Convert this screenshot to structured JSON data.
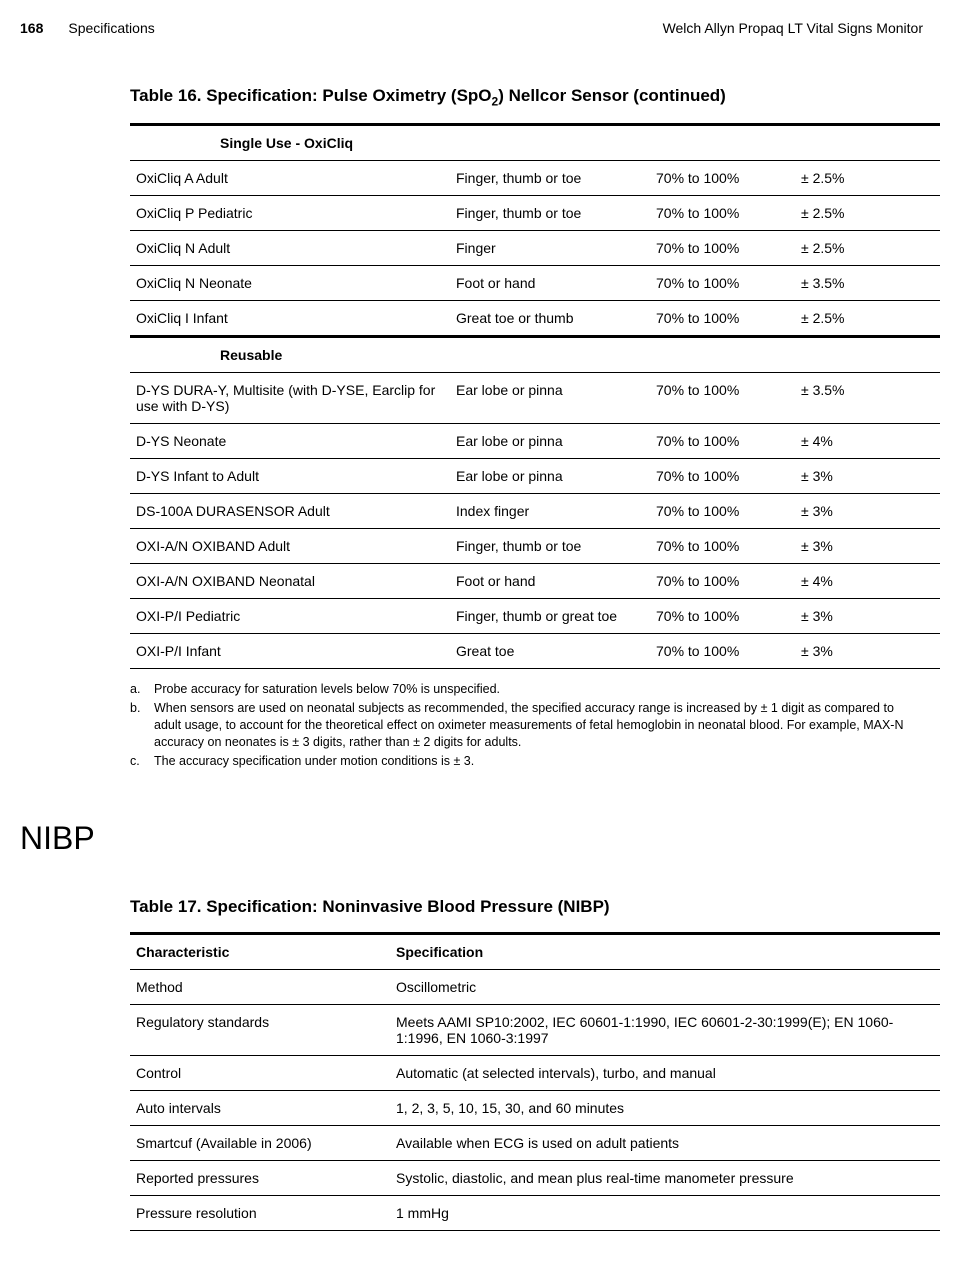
{
  "header": {
    "page": "168",
    "section": "Specifications",
    "product": "Welch Allyn Propaq LT Vital Signs Monitor"
  },
  "table16": {
    "title_prefix": "Table 16.  Specification: Pulse Oximetry (SpO",
    "title_sub": "2",
    "title_suffix": ") Nellcor Sensor (continued)",
    "section1": "Single Use - OxiCliq",
    "rows1": [
      {
        "name": "OxiCliq A Adult",
        "site": "Finger, thumb or toe",
        "range": "70% to 100%",
        "acc": "± 2.5%"
      },
      {
        "name": "OxiCliq P Pediatric",
        "site": "Finger, thumb or toe",
        "range": "70% to 100%",
        "acc": "± 2.5%"
      },
      {
        "name": "OxiCliq N Adult",
        "site": "Finger",
        "range": "70% to 100%",
        "acc": "± 2.5%"
      },
      {
        "name": "OxiCliq N Neonate",
        "site": "Foot or hand",
        "range": "70% to 100%",
        "acc": "± 3.5%"
      },
      {
        "name": "OxiCliq I Infant",
        "site": "Great toe or thumb",
        "range": "70% to 100%",
        "acc": "± 2.5%"
      }
    ],
    "section2": "Reusable",
    "rows2": [
      {
        "name": "D-YS DURA-Y, Multisite (with D-YSE, Earclip for use with D-YS)",
        "site": "Ear lobe or pinna",
        "range": "70% to 100%",
        "acc": "± 3.5%"
      },
      {
        "name": "D-YS Neonate",
        "site": "Ear lobe or pinna",
        "range": "70% to 100%",
        "acc": "± 4%"
      },
      {
        "name": "D-YS Infant to Adult",
        "site": "Ear lobe or pinna",
        "range": "70% to 100%",
        "acc": "± 3%"
      },
      {
        "name": "DS-100A DURASENSOR Adult",
        "site": "Index finger",
        "range": "70% to 100%",
        "acc": "± 3%"
      },
      {
        "name": "OXI-A/N OXIBAND Adult",
        "site": "Finger, thumb or toe",
        "range": "70% to 100%",
        "acc": "± 3%"
      },
      {
        "name": "OXI-A/N OXIBAND Neonatal",
        "site": "Foot or hand",
        "range": "70% to 100%",
        "acc": "± 4%"
      },
      {
        "name": "OXI-P/I Pediatric",
        "site": "Finger, thumb or great toe",
        "range": "70% to 100%",
        "acc": "± 3%"
      },
      {
        "name": "OXI-P/I Infant",
        "site": "Great toe",
        "range": "70% to 100%",
        "acc": "± 3%"
      }
    ]
  },
  "footnotes": {
    "a": "Probe accuracy for saturation levels below 70% is unspecified.",
    "b": "When sensors are used on neonatal subjects as recommended, the specified accuracy range is increased by ± 1 digit as compared to adult usage, to account for the theoretical effect on oximeter measurements of fetal hemoglobin in neonatal blood. For example, MAX-N accuracy on neonates is ± 3 digits, rather than ± 2 digits for adults.",
    "c": "The accuracy specification under motion conditions is ± 3."
  },
  "nibp_title": "NIBP",
  "table17": {
    "title": "Table 17.  Specification: Noninvasive Blood Pressure (NIBP)",
    "head_char": "Characteristic",
    "head_spec": "Specification",
    "rows": [
      {
        "char": "Method",
        "spec": "Oscillometric"
      },
      {
        "char": "Regulatory standards",
        "spec": "Meets AAMI SP10:2002, IEC 60601-1:1990, IEC 60601-2-30:1999(E); EN 1060-1:1996, EN 1060-3:1997"
      },
      {
        "char": "Control",
        "spec": "Automatic (at selected intervals), turbo, and manual"
      },
      {
        "char": "Auto intervals",
        "spec": "1, 2, 3, 5, 10, 15, 30, and 60 minutes"
      },
      {
        "char": "Smartcuf (Available in 2006)",
        "spec": "Available when ECG is used on adult patients"
      },
      {
        "char": "Reported pressures",
        "spec": "Systolic, diastolic, and mean plus real-time manometer pressure"
      },
      {
        "char": "Pressure resolution",
        "spec": "1 mmHg"
      }
    ]
  }
}
